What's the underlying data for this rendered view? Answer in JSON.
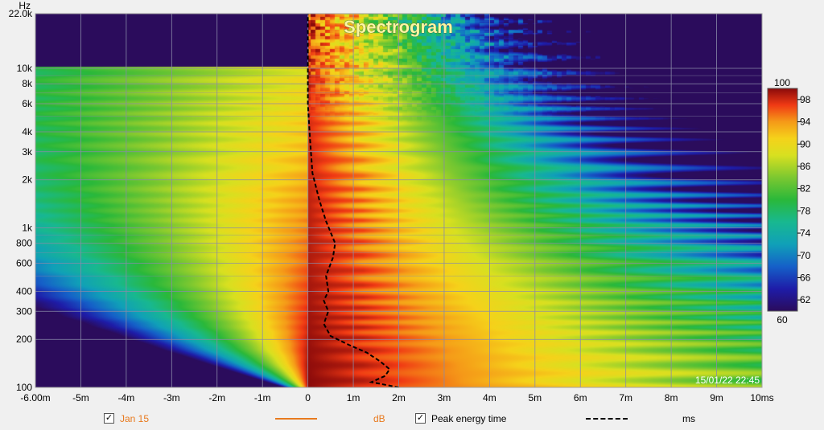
{
  "chart_data": {
    "type": "heatmap",
    "title": "Spectrogram",
    "xlabel": "ms",
    "ylabel": "Hz",
    "x_range": [
      -6,
      10
    ],
    "y_range": [
      100,
      22000
    ],
    "y_scale": "log",
    "x_ticks": [
      {
        "value": -6,
        "label": "-6.00m"
      },
      {
        "value": -5,
        "label": "-5m"
      },
      {
        "value": -4,
        "label": "-4m"
      },
      {
        "value": -3,
        "label": "-3m"
      },
      {
        "value": -2,
        "label": "-2m"
      },
      {
        "value": -1,
        "label": "-1m"
      },
      {
        "value": 0,
        "label": "0"
      },
      {
        "value": 1,
        "label": "1m"
      },
      {
        "value": 2,
        "label": "2m"
      },
      {
        "value": 3,
        "label": "3m"
      },
      {
        "value": 4,
        "label": "4m"
      },
      {
        "value": 5,
        "label": "5m"
      },
      {
        "value": 6,
        "label": "6m"
      },
      {
        "value": 7,
        "label": "7m"
      },
      {
        "value": 8,
        "label": "8m"
      },
      {
        "value": 9,
        "label": "9m"
      },
      {
        "value": 10,
        "label": "10ms"
      }
    ],
    "y_ticks": [
      {
        "value": 22000,
        "label": "22.0k"
      },
      {
        "value": 10000,
        "label": "10k"
      },
      {
        "value": 8000,
        "label": "8k"
      },
      {
        "value": 6000,
        "label": "6k"
      },
      {
        "value": 4000,
        "label": "4k"
      },
      {
        "value": 3000,
        "label": "3k"
      },
      {
        "value": 2000,
        "label": "2k"
      },
      {
        "value": 1000,
        "label": "1k"
      },
      {
        "value": 800,
        "label": "800"
      },
      {
        "value": 600,
        "label": "600"
      },
      {
        "value": 400,
        "label": "400"
      },
      {
        "value": 300,
        "label": "300"
      },
      {
        "value": 200,
        "label": "200"
      },
      {
        "value": 100,
        "label": "100"
      }
    ],
    "y_minor_gridlines": [
      9000,
      7000,
      5000,
      900,
      700,
      500
    ],
    "colorbar": {
      "min": 60,
      "max": 100,
      "ticks": [
        98,
        94,
        90,
        86,
        82,
        78,
        74,
        70,
        66,
        62
      ],
      "min_label": "60",
      "max_label": "100",
      "stops": [
        {
          "value": 60,
          "color": "#2b0c5c"
        },
        {
          "value": 64,
          "color": "#1e1ca8"
        },
        {
          "value": 68,
          "color": "#1560c8"
        },
        {
          "value": 72,
          "color": "#10a0b8"
        },
        {
          "value": 76,
          "color": "#18b890"
        },
        {
          "value": 80,
          "color": "#2ab83a"
        },
        {
          "value": 84,
          "color": "#7cc830"
        },
        {
          "value": 88,
          "color": "#d8e020"
        },
        {
          "value": 91,
          "color": "#f5d21a"
        },
        {
          "value": 94,
          "color": "#f59a18"
        },
        {
          "value": 97,
          "color": "#f03a14"
        },
        {
          "value": 100,
          "color": "#8a0a0a"
        }
      ]
    },
    "peak_energy_time": {
      "name": "Peak energy time",
      "points": [
        {
          "ms": 2.0,
          "hz": 100
        },
        {
          "ms": 1.4,
          "hz": 108
        },
        {
          "ms": 1.7,
          "hz": 118
        },
        {
          "ms": 1.8,
          "hz": 130
        },
        {
          "ms": 1.6,
          "hz": 145
        },
        {
          "ms": 1.3,
          "hz": 165
        },
        {
          "ms": 0.9,
          "hz": 185
        },
        {
          "ms": 0.5,
          "hz": 210
        },
        {
          "ms": 0.35,
          "hz": 250
        },
        {
          "ms": 0.45,
          "hz": 300
        },
        {
          "ms": 0.35,
          "hz": 350
        },
        {
          "ms": 0.45,
          "hz": 400
        },
        {
          "ms": 0.4,
          "hz": 500
        },
        {
          "ms": 0.55,
          "hz": 650
        },
        {
          "ms": 0.6,
          "hz": 800
        },
        {
          "ms": 0.4,
          "hz": 1100
        },
        {
          "ms": 0.25,
          "hz": 1500
        },
        {
          "ms": 0.1,
          "hz": 2200
        },
        {
          "ms": 0.05,
          "hz": 3500
        },
        {
          "ms": 0.0,
          "hz": 6000
        },
        {
          "ms": 0.0,
          "hz": 22000
        }
      ]
    }
  },
  "stamp": "15/01/22 22:45",
  "legend": {
    "series1_name": "Jan 15",
    "series1_unit": "dB",
    "series1_checked": "✓",
    "series2_name": "Peak energy time",
    "series2_unit": "ms",
    "series2_checked": "✓"
  },
  "colors": {
    "series1": "#e87a1e",
    "series2": "#000000",
    "grid": "#8a8aa8",
    "plot_frame": "#a0a0a0"
  }
}
